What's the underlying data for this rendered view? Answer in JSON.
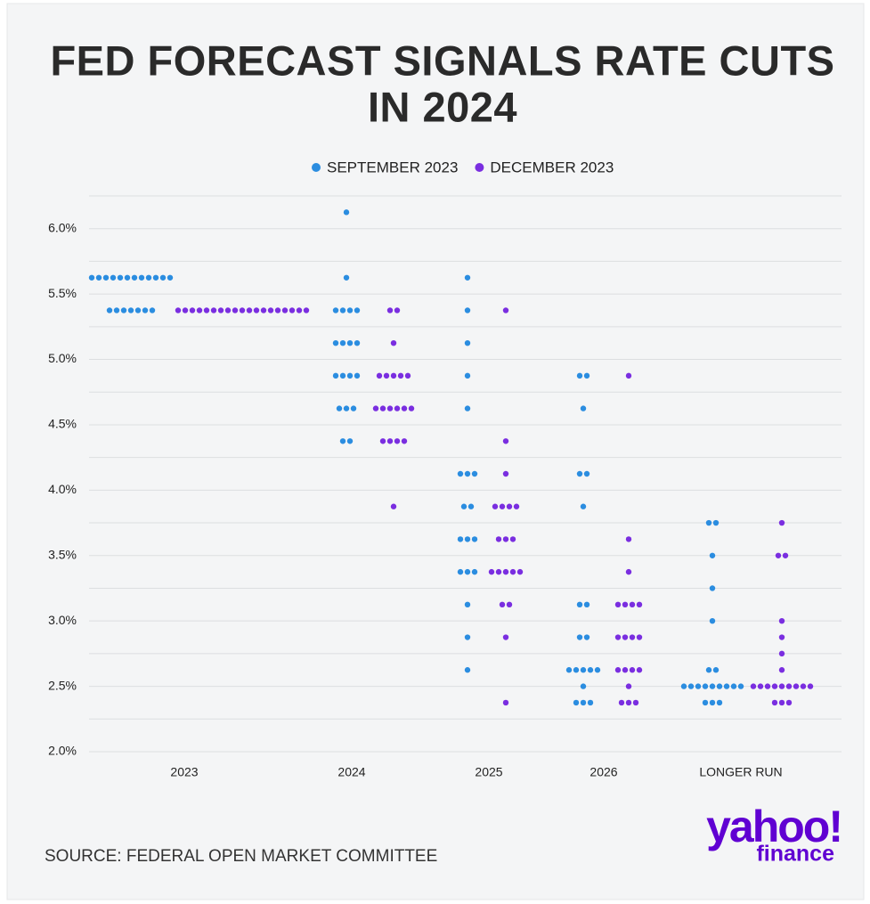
{
  "chart_data": {
    "type": "dotplot",
    "title": [
      "FED FORECAST SIGNALS RATE CUTS",
      "IN 2024"
    ],
    "categories": [
      "2023",
      "2024",
      "2025",
      "2026",
      "LONGER RUN"
    ],
    "series": [
      {
        "name": "SEPTEMBER 2023",
        "color": "#2b8de0",
        "values": [
          [
            5.625,
            5.625,
            5.625,
            5.625,
            5.625,
            5.625,
            5.625,
            5.625,
            5.625,
            5.625,
            5.625,
            5.625,
            5.375,
            5.375,
            5.375,
            5.375,
            5.375,
            5.375,
            5.375
          ],
          [
            6.125,
            5.625,
            5.375,
            5.375,
            5.375,
            5.375,
            5.125,
            5.125,
            5.125,
            5.125,
            4.875,
            4.875,
            4.875,
            4.875,
            4.625,
            4.625,
            4.625,
            4.375,
            4.375
          ],
          [
            5.625,
            5.375,
            5.125,
            4.875,
            4.625,
            4.125,
            4.125,
            4.125,
            3.875,
            3.875,
            3.625,
            3.625,
            3.625,
            3.375,
            3.375,
            3.375,
            3.125,
            2.875,
            2.625
          ],
          [
            4.875,
            4.875,
            4.625,
            4.125,
            4.125,
            3.875,
            3.125,
            3.125,
            2.875,
            2.875,
            2.625,
            2.625,
            2.625,
            2.625,
            2.625,
            2.5,
            2.375,
            2.375,
            2.375
          ],
          [
            3.75,
            3.75,
            3.5,
            3.25,
            3.0,
            2.625,
            2.625,
            2.5,
            2.5,
            2.5,
            2.5,
            2.5,
            2.5,
            2.5,
            2.5,
            2.5,
            2.375,
            2.375,
            2.375
          ]
        ]
      },
      {
        "name": "DECEMBER 2023",
        "color": "#7a2ee0",
        "values": [
          [
            5.375,
            5.375,
            5.375,
            5.375,
            5.375,
            5.375,
            5.375,
            5.375,
            5.375,
            5.375,
            5.375,
            5.375,
            5.375,
            5.375,
            5.375,
            5.375,
            5.375,
            5.375,
            5.375
          ],
          [
            5.375,
            5.375,
            5.125,
            4.875,
            4.875,
            4.875,
            4.875,
            4.875,
            4.625,
            4.625,
            4.625,
            4.625,
            4.625,
            4.625,
            4.375,
            4.375,
            4.375,
            4.375,
            3.875
          ],
          [
            5.375,
            4.375,
            4.125,
            3.875,
            3.875,
            3.875,
            3.875,
            3.625,
            3.625,
            3.625,
            3.375,
            3.375,
            3.375,
            3.375,
            3.375,
            3.125,
            3.125,
            2.875,
            2.375
          ],
          [
            4.875,
            3.625,
            3.375,
            3.125,
            3.125,
            3.125,
            3.125,
            2.875,
            2.875,
            2.875,
            2.875,
            2.625,
            2.625,
            2.625,
            2.625,
            2.5,
            2.375,
            2.375,
            2.375
          ],
          [
            3.75,
            3.5,
            3.5,
            3.0,
            2.875,
            2.75,
            2.625,
            2.5,
            2.5,
            2.5,
            2.5,
            2.5,
            2.5,
            2.5,
            2.5,
            2.5,
            2.375,
            2.375,
            2.375
          ]
        ]
      }
    ],
    "ylim": [
      2.0,
      6.25
    ],
    "yticks": [
      {
        "value": 2.0,
        "label": "2.0%"
      },
      {
        "value": 2.5,
        "label": "2.5%"
      },
      {
        "value": 3.0,
        "label": "3.0%"
      },
      {
        "value": 3.5,
        "label": "3.5%"
      },
      {
        "value": 4.0,
        "label": "4.0%"
      },
      {
        "value": 4.5,
        "label": "4.5%"
      },
      {
        "value": 5.0,
        "label": "5.0%"
      },
      {
        "value": 5.5,
        "label": "5.5%"
      },
      {
        "value": 6.0,
        "label": "6.0%"
      }
    ],
    "minor_grid": [
      2.25,
      2.75,
      3.25,
      3.75,
      4.25,
      4.75,
      5.25,
      5.75,
      6.25
    ],
    "grid": true,
    "source": "SOURCE: FEDERAL OPEN MARKET COMMITTEE",
    "logo": {
      "brand": "yahoo!",
      "sub": "finance"
    }
  }
}
